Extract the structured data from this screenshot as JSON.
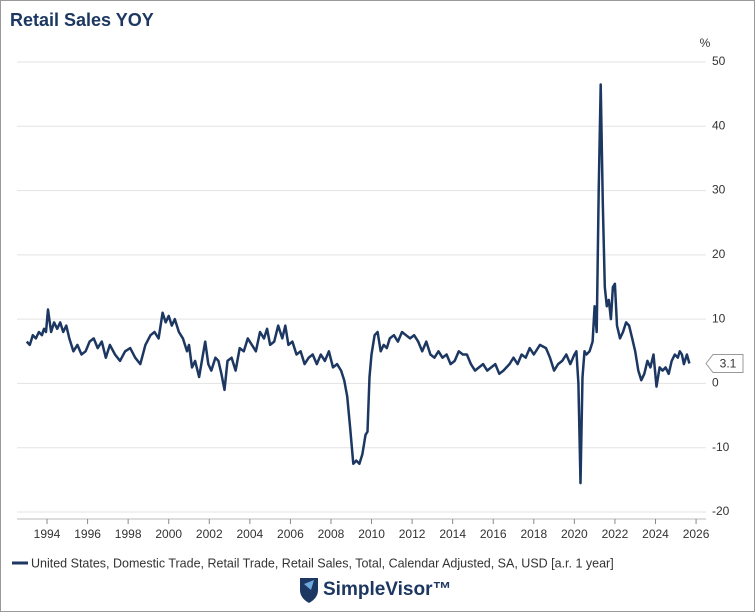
{
  "chart_data": {
    "type": "line",
    "title": "Retail Sales YOY",
    "y_unit": "%",
    "brand": "SimpleVisor™",
    "x": [
      1993.0,
      1993.15,
      1993.3,
      1993.45,
      1993.6,
      1993.75,
      1993.85,
      1993.95,
      1994.05,
      1994.2,
      1994.35,
      1994.5,
      1994.65,
      1994.8,
      1994.95,
      1995.1,
      1995.3,
      1995.5,
      1995.7,
      1995.9,
      1996.1,
      1996.3,
      1996.5,
      1996.7,
      1996.9,
      1997.1,
      1997.35,
      1997.6,
      1997.85,
      1998.1,
      1998.35,
      1998.6,
      1998.85,
      1999.1,
      1999.3,
      1999.5,
      1999.7,
      1999.85,
      2000.0,
      2000.15,
      2000.3,
      2000.5,
      2000.7,
      2000.9,
      2001.0,
      2001.15,
      2001.3,
      2001.5,
      2001.8,
      2001.95,
      2002.1,
      2002.3,
      2002.45,
      2002.6,
      2002.75,
      2002.9,
      2003.1,
      2003.3,
      2003.5,
      2003.7,
      2003.9,
      2004.1,
      2004.3,
      2004.5,
      2004.7,
      2004.85,
      2005.0,
      2005.2,
      2005.4,
      2005.6,
      2005.75,
      2005.9,
      2006.1,
      2006.3,
      2006.5,
      2006.7,
      2006.9,
      2007.1,
      2007.3,
      2007.5,
      2007.7,
      2007.9,
      2008.1,
      2008.3,
      2008.5,
      2008.65,
      2008.8,
      2008.95,
      2009.1,
      2009.25,
      2009.4,
      2009.55,
      2009.7,
      2009.8,
      2009.9,
      2010.0,
      2010.15,
      2010.3,
      2010.45,
      2010.6,
      2010.75,
      2010.9,
      2011.1,
      2011.3,
      2011.5,
      2011.7,
      2011.9,
      2012.1,
      2012.3,
      2012.5,
      2012.7,
      2012.9,
      2013.1,
      2013.3,
      2013.5,
      2013.7,
      2013.9,
      2014.1,
      2014.3,
      2014.5,
      2014.7,
      2014.9,
      2015.1,
      2015.3,
      2015.5,
      2015.7,
      2015.9,
      2016.1,
      2016.3,
      2016.5,
      2016.8,
      2017.0,
      2017.2,
      2017.4,
      2017.6,
      2017.8,
      2018.0,
      2018.3,
      2018.6,
      2018.8,
      2019.0,
      2019.2,
      2019.4,
      2019.6,
      2019.8,
      2020.0,
      2020.1,
      2020.2,
      2020.3,
      2020.4,
      2020.5,
      2020.6,
      2020.75,
      2020.9,
      2021.0,
      2021.1,
      2021.2,
      2021.3,
      2021.4,
      2021.5,
      2021.6,
      2021.7,
      2021.8,
      2021.9,
      2022.0,
      2022.1,
      2022.25,
      2022.4,
      2022.55,
      2022.7,
      2022.85,
      2023.0,
      2023.15,
      2023.3,
      2023.45,
      2023.6,
      2023.75,
      2023.9,
      2024.05,
      2024.2,
      2024.35,
      2024.5,
      2024.65,
      2024.8,
      2024.95,
      2025.1,
      2025.2,
      2025.3,
      2025.4,
      2025.55,
      2025.67
    ],
    "series": [
      {
        "name": "United States, Domestic Trade, Retail Trade, Retail Sales, Total, Calendar Adjusted, SA, USD [a.r. 1 year]",
        "color": "#1c3761",
        "values": [
          6.5,
          6,
          7.5,
          7,
          8,
          7.5,
          8.5,
          8,
          11.5,
          8,
          9.5,
          8.5,
          9.5,
          8,
          9,
          7,
          5,
          6,
          4.5,
          5,
          6.5,
          7,
          5.5,
          6.5,
          4,
          6,
          4.5,
          3.5,
          5,
          5.5,
          4,
          3,
          6,
          7.5,
          8,
          7,
          11,
          9.5,
          10.5,
          9,
          10,
          8,
          7,
          5,
          6,
          2.5,
          3.5,
          1,
          6.5,
          3,
          2,
          4,
          3.5,
          1.5,
          -1,
          3.5,
          4,
          2,
          5.5,
          5,
          7,
          6,
          5,
          8,
          7,
          8.5,
          6,
          6.5,
          9,
          7,
          9,
          6,
          6.5,
          4.5,
          5,
          3,
          4,
          4.5,
          3,
          4.5,
          3.5,
          5,
          2.5,
          3,
          2,
          0.5,
          -2,
          -7,
          -12.5,
          -12,
          -12.5,
          -11,
          -8,
          -7.5,
          1,
          4.5,
          7.5,
          8,
          5,
          6,
          5.5,
          7,
          7.5,
          6.5,
          8,
          7.5,
          7,
          7.5,
          6.5,
          5,
          6.5,
          4.5,
          4,
          5,
          4,
          4.5,
          3,
          3.5,
          5,
          4.5,
          4.5,
          3,
          2,
          2.5,
          3,
          2,
          2.5,
          3,
          1.5,
          2,
          3,
          4,
          3,
          4.5,
          4,
          5.5,
          4.5,
          6,
          5.5,
          4,
          2,
          3,
          3.5,
          4.5,
          3,
          4.5,
          5,
          0,
          -15.5,
          1,
          5,
          4.5,
          5,
          6.5,
          12,
          8,
          30,
          46.5,
          28,
          15,
          12,
          13,
          10,
          15,
          15.5,
          9,
          7,
          8,
          9.5,
          9,
          7,
          5,
          2,
          0.5,
          1.5,
          3.5,
          2.5,
          4.5,
          -0.5,
          2.5,
          2,
          2.5,
          1.5,
          3.5,
          4.5,
          4,
          5,
          4.5,
          3,
          4.5,
          3.1
        ]
      }
    ],
    "xlim": [
      1992.52,
      2026.49
    ],
    "xticks": [
      1994,
      1996,
      1998,
      2000,
      2002,
      2004,
      2006,
      2008,
      2010,
      2012,
      2014,
      2016,
      2018,
      2020,
      2022,
      2024,
      2026
    ],
    "ylim": [
      -20,
      50
    ],
    "yticks": [
      50,
      40,
      30,
      20,
      10,
      0,
      -10,
      -20
    ],
    "grid": true,
    "legend": "bottom"
  }
}
